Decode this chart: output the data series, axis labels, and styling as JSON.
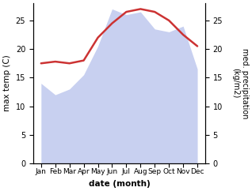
{
  "months": [
    "Jan",
    "Feb",
    "Mar",
    "Apr",
    "May",
    "Jun",
    "Jul",
    "Aug",
    "Sep",
    "Oct",
    "Nov",
    "Dec"
  ],
  "x": [
    0,
    1,
    2,
    3,
    4,
    5,
    6,
    7,
    8,
    9,
    10,
    11
  ],
  "max_temp": [
    14.0,
    12.0,
    13.0,
    15.5,
    20.5,
    27.0,
    26.0,
    26.5,
    23.5,
    23.0,
    24.0,
    16.5
  ],
  "precipitation": [
    17.5,
    17.8,
    17.5,
    18.0,
    22.0,
    24.5,
    26.5,
    27.0,
    26.5,
    25.0,
    22.5,
    20.5
  ],
  "temp_fill_color": "#c8d0f0",
  "precip_color": "#cc3333",
  "left_ylim": [
    0,
    28
  ],
  "right_ylim": [
    0,
    28
  ],
  "left_yticks": [
    0,
    5,
    10,
    15,
    20,
    25
  ],
  "right_yticks": [
    0,
    5,
    10,
    15,
    20,
    25
  ],
  "xlabel": "date (month)",
  "ylabel_left": "max temp (C)",
  "ylabel_right": "med. precipitation\n(kg/m2)",
  "figsize": [
    3.18,
    2.42
  ],
  "dpi": 100
}
